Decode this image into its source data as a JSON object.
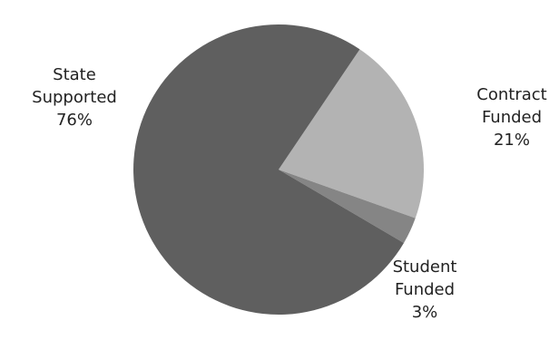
{
  "chart_data": {
    "type": "pie",
    "title": "",
    "start_angle_deg": 34,
    "direction": "clockwise",
    "slices": [
      {
        "name": "Contract Funded",
        "label_lines": [
          "Contract",
          "Funded"
        ],
        "value_label": "21%",
        "value": 21,
        "color": "#b3b3b3"
      },
      {
        "name": "Student Funded",
        "label_lines": [
          "Student",
          "Funded"
        ],
        "value_label": "3%",
        "value": 3,
        "color": "#858585"
      },
      {
        "name": "State Supported",
        "label_lines": [
          "State",
          "Supported"
        ],
        "value_label": "76%",
        "value": 76,
        "color": "#5f5f5f"
      }
    ]
  }
}
